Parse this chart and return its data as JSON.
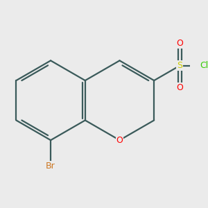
{
  "background_color": "#ebebeb",
  "bond_color": "#3a5a5a",
  "bond_width": 1.6,
  "atom_colors": {
    "O": "#ff0000",
    "S": "#cccc00",
    "Cl": "#33cc00",
    "Br": "#cc7722",
    "C": "#3a5a5a"
  },
  "figsize": [
    3.0,
    3.0
  ],
  "dpi": 100
}
